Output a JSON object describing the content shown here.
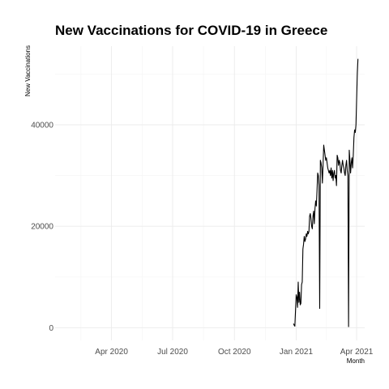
{
  "chart_data": {
    "type": "line",
    "title": "New Vaccinations for COVID-19 in Greece",
    "xlabel": "Month",
    "ylabel": "New Vaccinations",
    "x_axis_type": "date",
    "xlim": [
      "2020-01-08",
      "2021-04-13"
    ],
    "ylim": [
      -2500,
      55500
    ],
    "x_ticks": [
      {
        "date": "2020-04-01",
        "label": "Apr 2020"
      },
      {
        "date": "2020-07-01",
        "label": "Jul 2020"
      },
      {
        "date": "2020-10-01",
        "label": "Oct 2020"
      },
      {
        "date": "2021-01-01",
        "label": "Jan 2021"
      },
      {
        "date": "2021-04-01",
        "label": "Apr 2021"
      }
    ],
    "y_ticks": [
      {
        "value": 0,
        "label": "0"
      },
      {
        "value": 20000,
        "label": "20000"
      },
      {
        "value": 40000,
        "label": "40000"
      }
    ],
    "grid": true,
    "legend": "none",
    "line_color": "#000000",
    "series": [
      {
        "x": [
          "2020-12-28",
          "2020-12-29",
          "2020-12-30",
          "2021-01-01",
          "2021-01-02",
          "2021-01-03",
          "2021-01-04",
          "2021-01-05",
          "2021-01-06",
          "2021-01-07",
          "2021-01-08",
          "2021-01-09",
          "2021-01-10",
          "2021-01-11",
          "2021-01-12",
          "2021-01-13",
          "2021-01-14",
          "2021-01-15",
          "2021-01-16",
          "2021-01-17",
          "2021-01-18",
          "2021-01-19",
          "2021-01-20",
          "2021-01-21",
          "2021-01-22",
          "2021-01-23",
          "2021-01-24",
          "2021-01-25",
          "2021-01-26",
          "2021-01-27",
          "2021-01-28",
          "2021-01-29",
          "2021-01-30",
          "2021-01-31",
          "2021-02-01",
          "2021-02-02",
          "2021-02-03",
          "2021-02-04",
          "2021-02-05",
          "2021-02-06",
          "2021-02-07",
          "2021-02-08",
          "2021-02-09",
          "2021-02-10",
          "2021-02-11",
          "2021-02-12",
          "2021-02-13",
          "2021-02-14",
          "2021-02-15",
          "2021-02-16",
          "2021-02-17",
          "2021-02-18",
          "2021-02-19",
          "2021-02-20",
          "2021-02-21",
          "2021-02-22",
          "2021-02-23",
          "2021-02-24",
          "2021-02-25",
          "2021-02-26",
          "2021-02-27",
          "2021-02-28",
          "2021-03-01",
          "2021-03-02",
          "2021-03-03",
          "2021-03-04",
          "2021-03-05",
          "2021-03-06",
          "2021-03-07",
          "2021-03-08",
          "2021-03-09",
          "2021-03-10",
          "2021-03-11",
          "2021-03-12",
          "2021-03-13",
          "2021-03-14",
          "2021-03-15",
          "2021-03-16",
          "2021-03-17",
          "2021-03-18",
          "2021-03-19",
          "2021-03-20",
          "2021-03-21",
          "2021-03-22",
          "2021-03-23",
          "2021-03-24",
          "2021-03-25",
          "2021-03-26",
          "2021-03-27",
          "2021-03-28",
          "2021-03-29",
          "2021-03-30",
          "2021-03-31",
          "2021-04-01",
          "2021-04-02",
          "2021-04-03"
        ],
        "y": [
          800,
          500,
          300,
          6500,
          6000,
          4000,
          9000,
          5000,
          7000,
          4500,
          4800,
          8500,
          9000,
          15500,
          16500,
          18000,
          17000,
          17500,
          18500,
          18000,
          19000,
          18500,
          19000,
          22000,
          22500,
          21500,
          20000,
          19500,
          22000,
          23000,
          20500,
          23500,
          25000,
          24000,
          27000,
          30500,
          30000,
          28000,
          3800,
          33000,
          32500,
          31500,
          28500,
          32000,
          36000,
          35000,
          34000,
          33000,
          33500,
          32500,
          31500,
          31000,
          30500,
          31000,
          30000,
          31500,
          29500,
          31000,
          29000,
          30500,
          31000,
          29500,
          30000,
          28000,
          34000,
          33500,
          32000,
          33000,
          32500,
          31000,
          30500,
          32000,
          33000,
          32000,
          31500,
          30500,
          30000,
          32000,
          33000,
          31000,
          30000,
          200,
          35000,
          33000,
          30500,
          32500,
          33500,
          31500,
          34000,
          37500,
          39000,
          38500,
          40000,
          45000,
          50000,
          53000
        ]
      }
    ]
  }
}
